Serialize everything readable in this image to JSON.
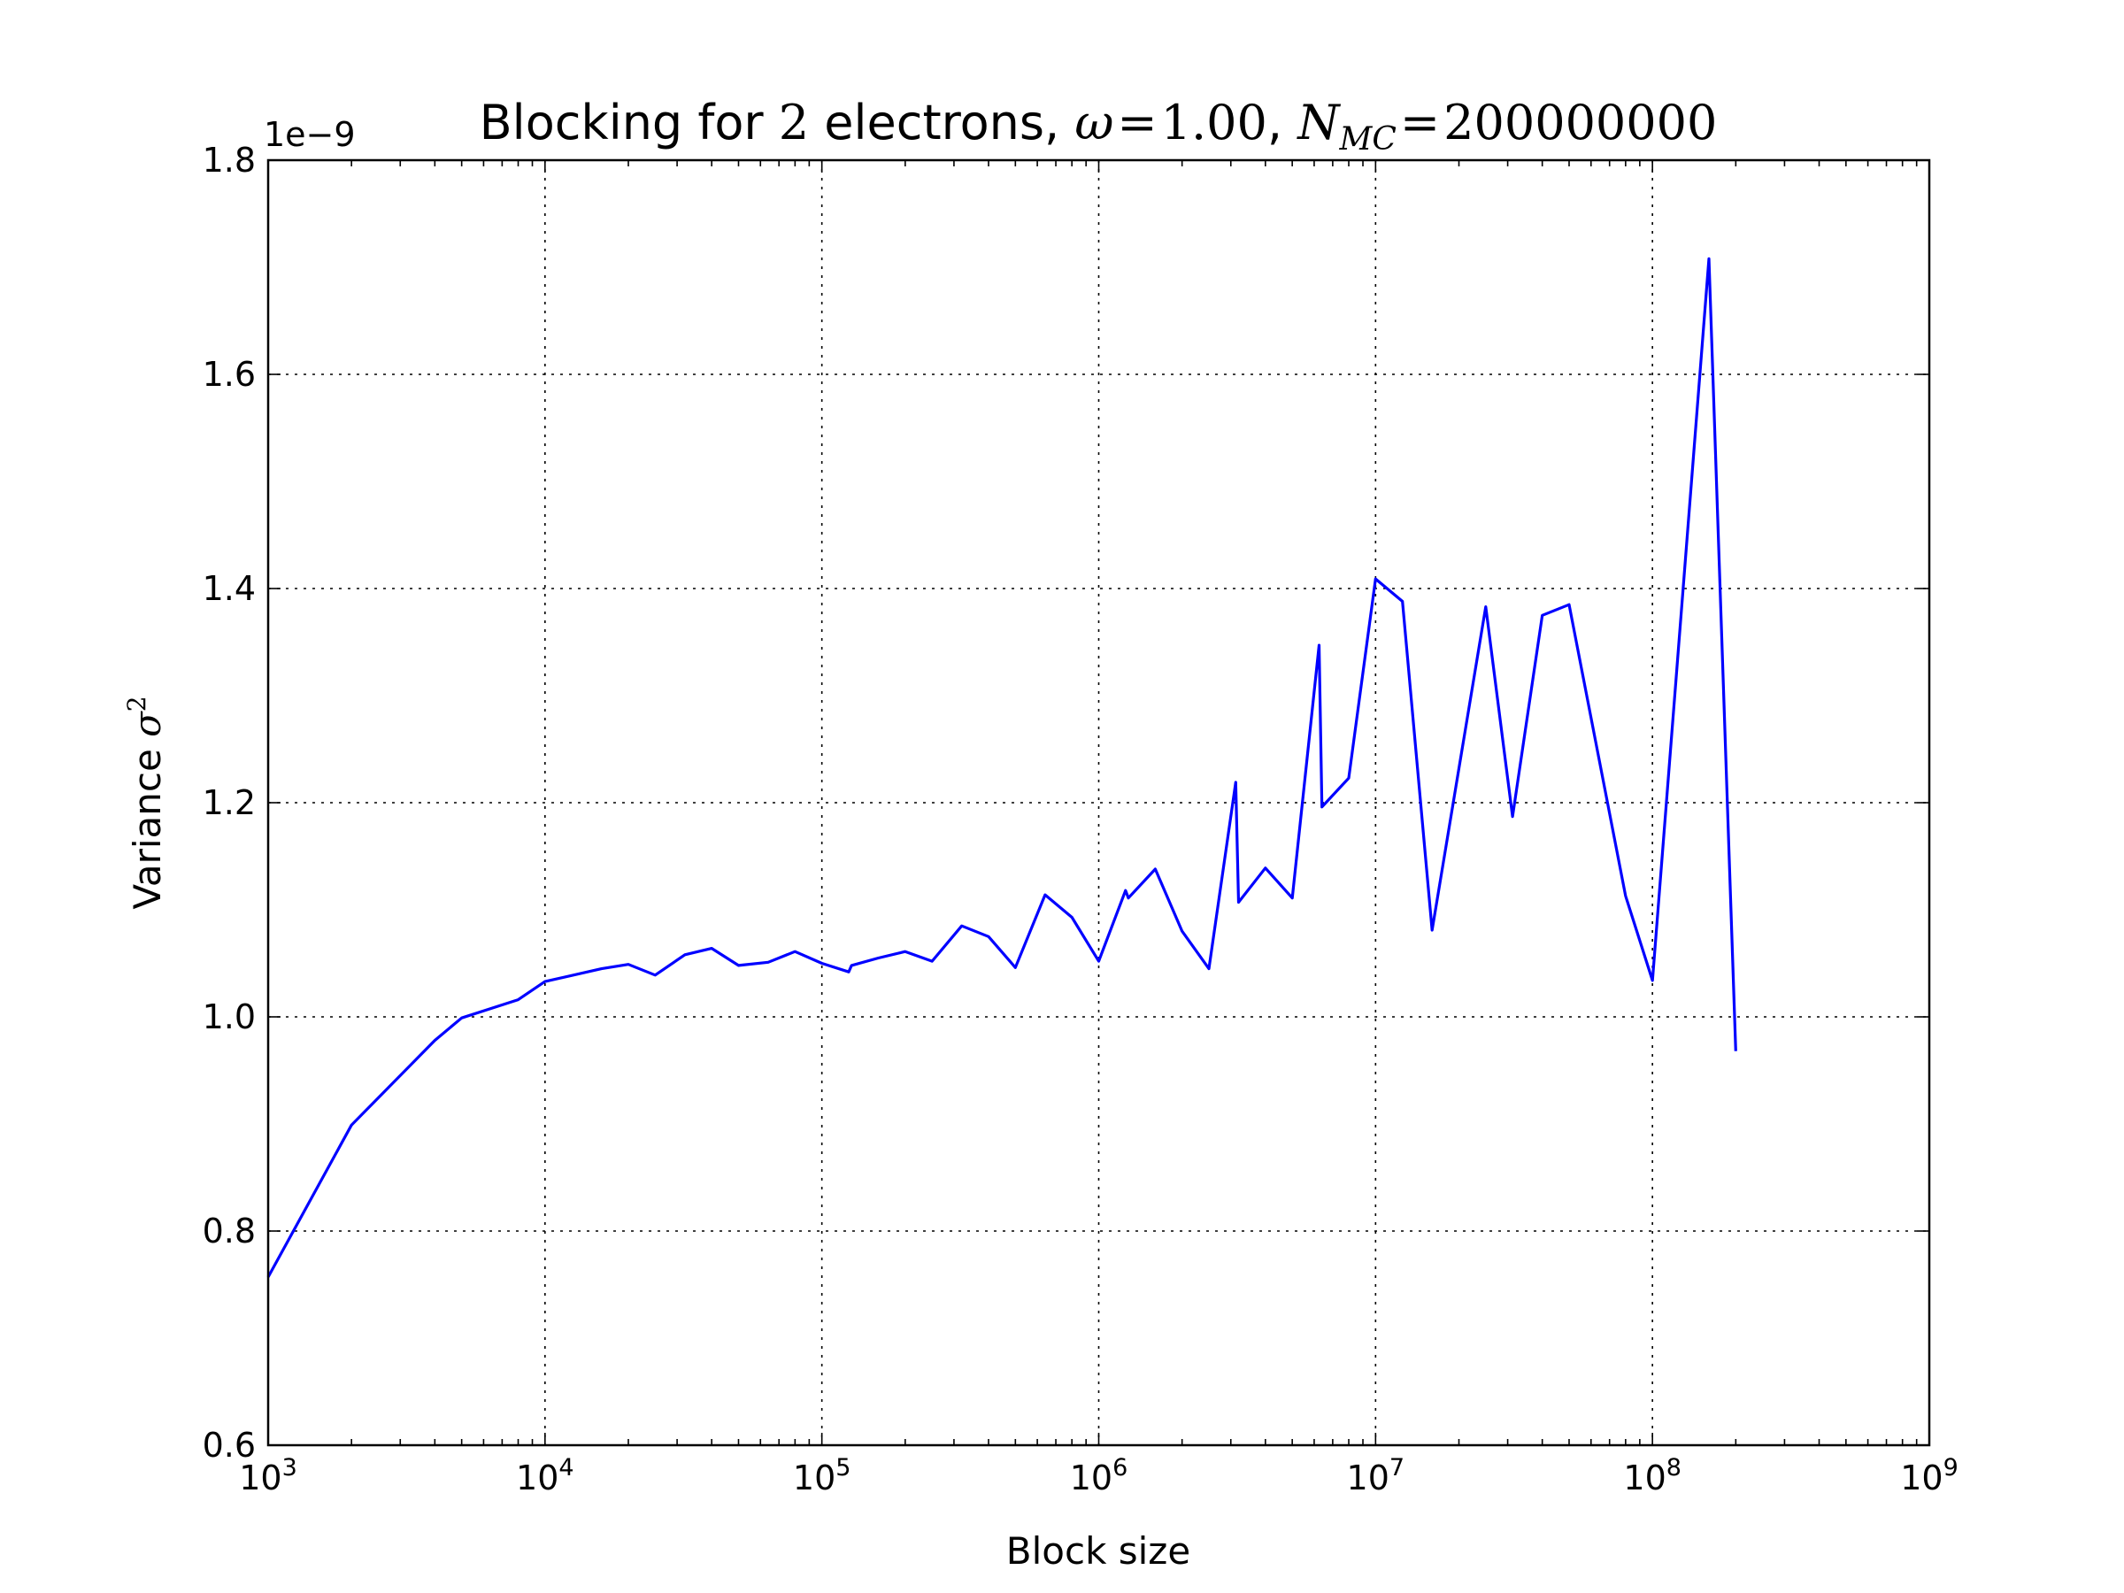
{
  "chart_data": {
    "type": "line",
    "title": {
      "prefix": "Blocking for ",
      "n": "2",
      "mid": " electrons, ",
      "omega_symbol": "ω",
      "omega_value": "1.00",
      "sep": ", ",
      "nmc_symbol": "N",
      "nmc_sub": "MC",
      "nmc_value": "200000000",
      "equals": "="
    },
    "xlabel": "Block size",
    "ylabel": {
      "text": "Variance ",
      "symbol": "σ",
      "sup": "2"
    },
    "offset_text": "1e−9",
    "x_scale": "log",
    "xlim": [
      1000,
      1000000000
    ],
    "ylim": [
      0.6,
      1.8
    ],
    "x_ticks": [
      {
        "base": "10",
        "exp": "3",
        "value": 1000
      },
      {
        "base": "10",
        "exp": "4",
        "value": 10000
      },
      {
        "base": "10",
        "exp": "5",
        "value": 100000
      },
      {
        "base": "10",
        "exp": "6",
        "value": 1000000
      },
      {
        "base": "10",
        "exp": "7",
        "value": 10000000
      },
      {
        "base": "10",
        "exp": "8",
        "value": 100000000
      },
      {
        "base": "10",
        "exp": "9",
        "value": 1000000000
      }
    ],
    "y_ticks": [
      "0.6",
      "0.8",
      "1.0",
      "1.2",
      "1.4",
      "1.6",
      "1.8"
    ],
    "grid": true,
    "series": [
      {
        "color": "#0000ff",
        "x": [
          1000,
          2000,
          4000,
          5000,
          8000,
          10000,
          16000,
          20000,
          25000,
          32000,
          40000,
          50000,
          64000,
          80000,
          100000,
          125000,
          128000,
          160000,
          200000,
          250000,
          320000,
          400000,
          500000,
          640000,
          800000,
          1000000,
          1250000,
          1280000,
          1600000,
          2000000,
          2500000,
          3125000,
          3200000,
          4000000,
          5000000,
          6250000,
          6400000,
          8000000,
          10000000,
          12500000,
          16000000,
          25000000,
          31250000,
          40000000,
          50000000,
          80000000,
          100000000,
          160000000,
          200000000
        ],
        "y": [
          0.757,
          0.899,
          0.978,
          0.999,
          1.016,
          1.033,
          1.045,
          1.049,
          1.039,
          1.058,
          1.064,
          1.048,
          1.051,
          1.061,
          1.05,
          1.042,
          1.048,
          1.055,
          1.061,
          1.052,
          1.085,
          1.075,
          1.046,
          1.114,
          1.093,
          1.052,
          1.118,
          1.111,
          1.138,
          1.08,
          1.045,
          1.219,
          1.107,
          1.139,
          1.111,
          1.347,
          1.196,
          1.223,
          1.409,
          1.388,
          1.081,
          1.383,
          1.187,
          1.375,
          1.385,
          1.113,
          1.034,
          1.708,
          0.968
        ]
      }
    ]
  }
}
